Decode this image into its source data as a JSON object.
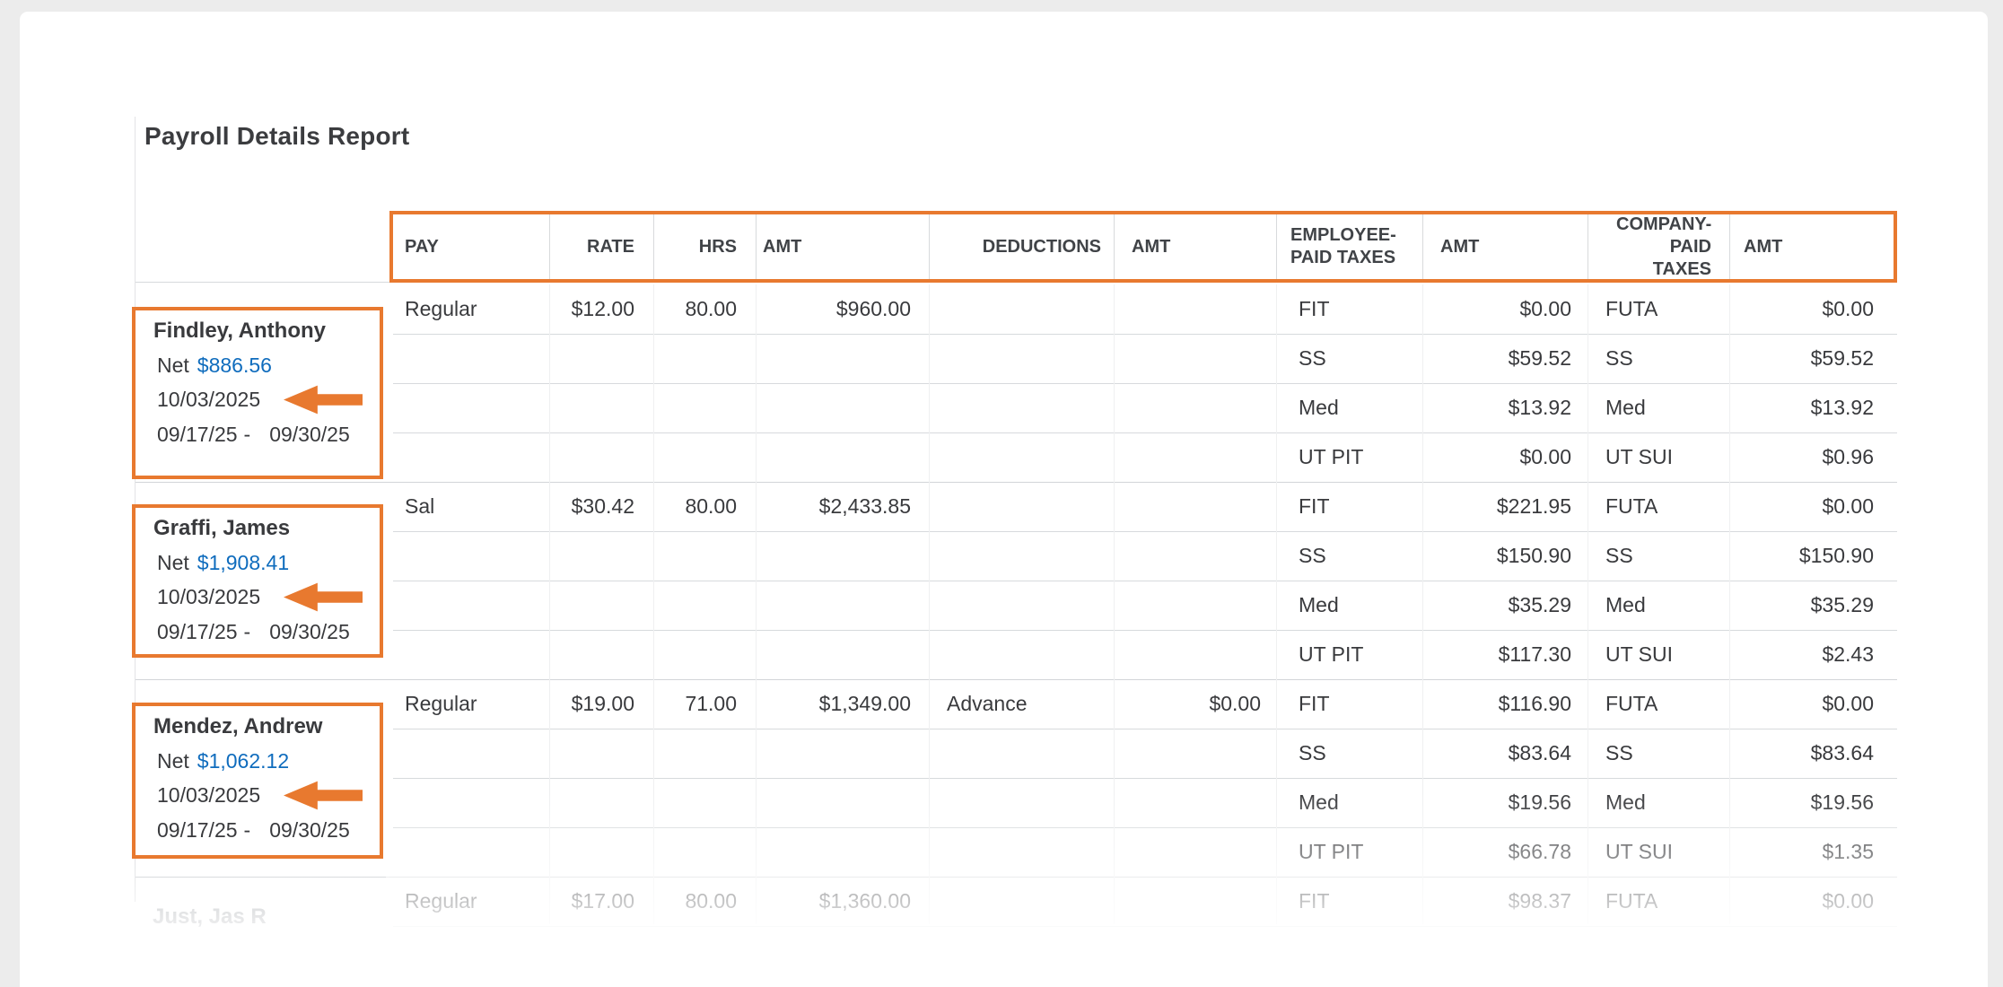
{
  "page": {
    "title": "Payroll Details Report"
  },
  "colors": {
    "accent_orange": "#E8792F",
    "link_blue": "#0F6CBD",
    "text_dark": "#393A3D",
    "page_background": "#ECECEC"
  },
  "table": {
    "headers": [
      "PAY",
      "RATE",
      "HRS",
      "AMT",
      "DEDUCTIONS",
      "AMT",
      "EMPLOYEE-PAID TAXES",
      "AMT",
      "COMPANY-PAID TAXES",
      "AMT"
    ]
  },
  "employees": [
    {
      "name": "Findley, Anthony",
      "net_label": "Net",
      "net_amount": "$886.56",
      "pay_date": "10/03/2025",
      "period_start": "09/17/25",
      "period_separator": "-",
      "period_end": "09/30/25",
      "highlighted": true,
      "rows": [
        {
          "pay": "Regular",
          "rate": "$12.00",
          "hrs": "80.00",
          "amt": "$960.00",
          "ded": "",
          "ded_amt": "",
          "emp_tax": "FIT",
          "emp_amt": "$0.00",
          "co_tax": "FUTA",
          "co_amt": "$0.00"
        },
        {
          "pay": "",
          "rate": "",
          "hrs": "",
          "amt": "",
          "ded": "",
          "ded_amt": "",
          "emp_tax": "SS",
          "emp_amt": "$59.52",
          "co_tax": "SS",
          "co_amt": "$59.52"
        },
        {
          "pay": "",
          "rate": "",
          "hrs": "",
          "amt": "",
          "ded": "",
          "ded_amt": "",
          "emp_tax": "Med",
          "emp_amt": "$13.92",
          "co_tax": "Med",
          "co_amt": "$13.92"
        },
        {
          "pay": "",
          "rate": "",
          "hrs": "",
          "amt": "",
          "ded": "",
          "ded_amt": "",
          "emp_tax": "UT PIT",
          "emp_amt": "$0.00",
          "co_tax": "UT SUI",
          "co_amt": "$0.96"
        }
      ]
    },
    {
      "name": "Graffi, James",
      "net_label": "Net",
      "net_amount": "$1,908.41",
      "pay_date": "10/03/2025",
      "period_start": "09/17/25",
      "period_separator": "-",
      "period_end": "09/30/25",
      "highlighted": true,
      "rows": [
        {
          "pay": "Sal",
          "rate": "$30.42",
          "hrs": "80.00",
          "amt": "$2,433.85",
          "ded": "",
          "ded_amt": "",
          "emp_tax": "FIT",
          "emp_amt": "$221.95",
          "co_tax": "FUTA",
          "co_amt": "$0.00"
        },
        {
          "pay": "",
          "rate": "",
          "hrs": "",
          "amt": "",
          "ded": "",
          "ded_amt": "",
          "emp_tax": "SS",
          "emp_amt": "$150.90",
          "co_tax": "SS",
          "co_amt": "$150.90"
        },
        {
          "pay": "",
          "rate": "",
          "hrs": "",
          "amt": "",
          "ded": "",
          "ded_amt": "",
          "emp_tax": "Med",
          "emp_amt": "$35.29",
          "co_tax": "Med",
          "co_amt": "$35.29"
        },
        {
          "pay": "",
          "rate": "",
          "hrs": "",
          "amt": "",
          "ded": "",
          "ded_amt": "",
          "emp_tax": "UT PIT",
          "emp_amt": "$117.30",
          "co_tax": "UT SUI",
          "co_amt": "$2.43"
        }
      ]
    },
    {
      "name": "Mendez, Andrew",
      "net_label": "Net",
      "net_amount": "$1,062.12",
      "pay_date": "10/03/2025",
      "period_start": "09/17/25",
      "period_separator": "-",
      "period_end": "09/30/25",
      "highlighted": true,
      "rows": [
        {
          "pay": "Regular",
          "rate": "$19.00",
          "hrs": "71.00",
          "amt": "$1,349.00",
          "ded": "Advance",
          "ded_amt": "$0.00",
          "emp_tax": "FIT",
          "emp_amt": "$116.90",
          "co_tax": "FUTA",
          "co_amt": "$0.00"
        },
        {
          "pay": "",
          "rate": "",
          "hrs": "",
          "amt": "",
          "ded": "",
          "ded_amt": "",
          "emp_tax": "SS",
          "emp_amt": "$83.64",
          "co_tax": "SS",
          "co_amt": "$83.64"
        },
        {
          "pay": "",
          "rate": "",
          "hrs": "",
          "amt": "",
          "ded": "",
          "ded_amt": "",
          "emp_tax": "Med",
          "emp_amt": "$19.56",
          "co_tax": "Med",
          "co_amt": "$19.56"
        },
        {
          "pay": "",
          "rate": "",
          "hrs": "",
          "amt": "",
          "ded": "",
          "ded_amt": "",
          "emp_tax": "UT PIT",
          "emp_amt": "$66.78",
          "co_tax": "UT SUI",
          "co_amt": "$1.35"
        }
      ]
    },
    {
      "name": "Just, Jas R",
      "net_label": "",
      "net_amount": "",
      "pay_date": "",
      "period_start": "",
      "period_separator": "",
      "period_end": "",
      "highlighted": false,
      "faded": true,
      "rows": [
        {
          "pay": "Regular",
          "rate": "$17.00",
          "hrs": "80.00",
          "amt": "$1,360.00",
          "ded": "",
          "ded_amt": "",
          "emp_tax": "FIT",
          "emp_amt": "$98.37",
          "co_tax": "FUTA",
          "co_amt": "$0.00"
        }
      ]
    }
  ]
}
